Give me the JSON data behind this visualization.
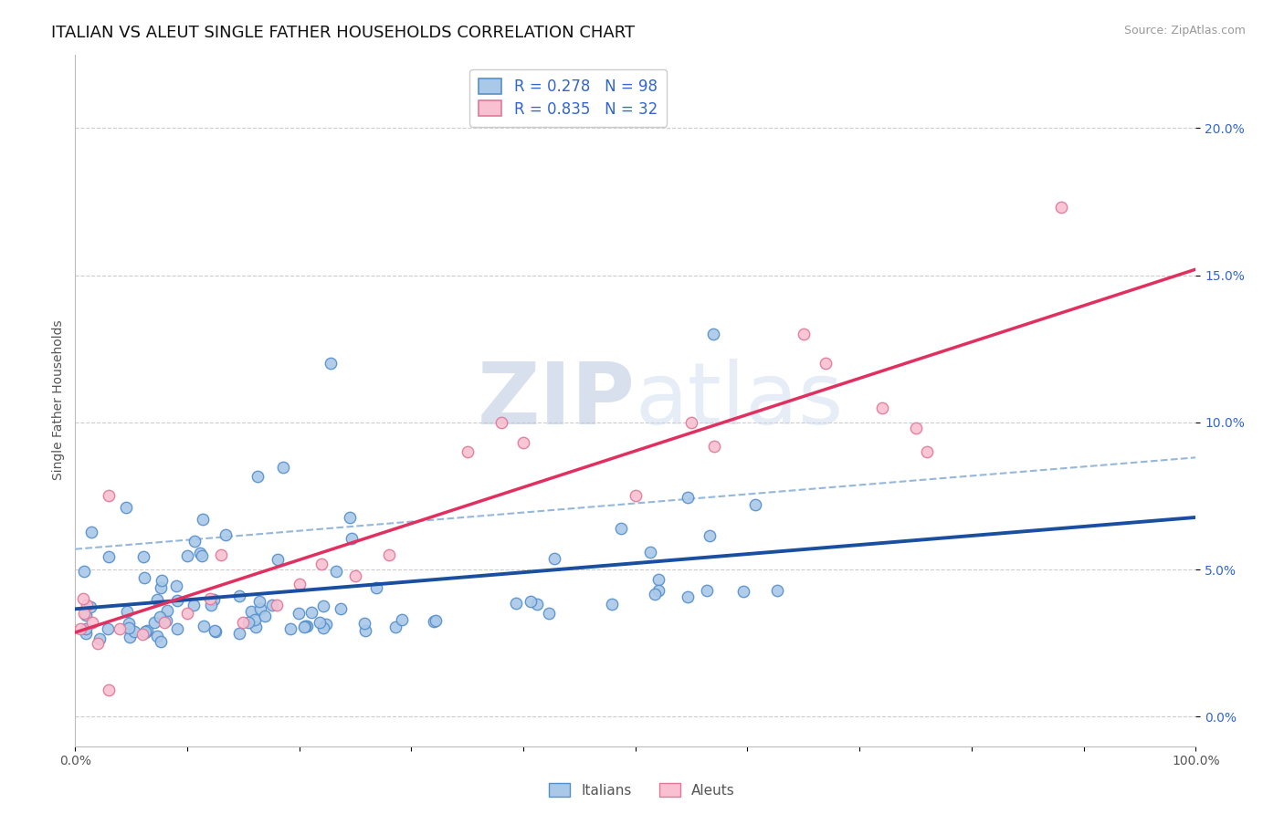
{
  "title": "ITALIAN VS ALEUT SINGLE FATHER HOUSEHOLDS CORRELATION CHART",
  "source_text": "Source: ZipAtlas.com",
  "ylabel": "Single Father Households",
  "xlim": [
    0.0,
    1.0
  ],
  "ylim": [
    -0.01,
    0.225
  ],
  "yticks": [
    0.0,
    0.05,
    0.1,
    0.15,
    0.2
  ],
  "ytick_labels": [
    "0.0%",
    "5.0%",
    "10.0%",
    "15.0%",
    "20.0%"
  ],
  "xticks": [
    0.0,
    0.1,
    0.2,
    0.3,
    0.4,
    0.5,
    0.6,
    0.7,
    0.8,
    0.9,
    1.0
  ],
  "xtick_labels": [
    "0.0%",
    "",
    "",
    "",
    "",
    "",
    "",
    "",
    "",
    "",
    "100.0%"
  ],
  "italian_R": 0.278,
  "italian_N": 98,
  "aleut_R": 0.835,
  "aleut_N": 32,
  "italian_color": "#aac8e8",
  "italian_edge_color": "#5590cc",
  "aleut_color": "#f8c0d0",
  "aleut_edge_color": "#e07898",
  "italian_line_color": "#1a4fa0",
  "aleut_line_color": "#e03060",
  "dashed_line_color": "#8ab0d8",
  "title_fontsize": 13,
  "axis_label_fontsize": 10,
  "tick_fontsize": 10,
  "legend_fontsize": 12,
  "marker_size": 80,
  "watermark_color": "#c8d8f0",
  "background_color": "#ffffff",
  "grid_color": "#cccccc"
}
